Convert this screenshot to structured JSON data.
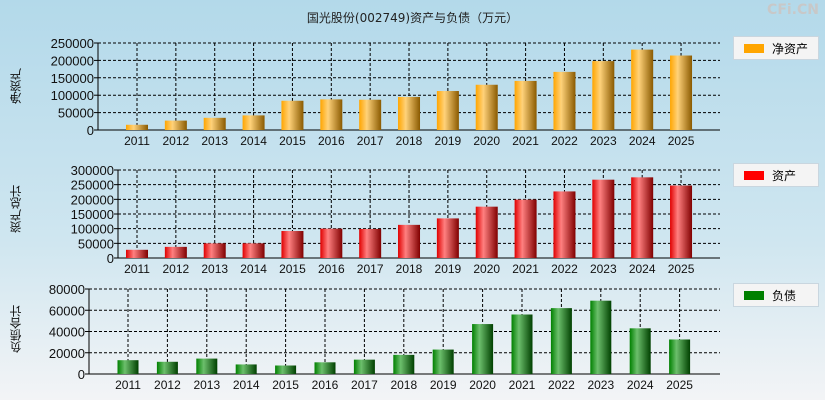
{
  "title": "国光股份(002749)资产与负债（万元）",
  "watermark": "CFi.CN",
  "chart_data": [
    {
      "type": "bar",
      "ylabel": "净资产",
      "legend": "净资产",
      "color": "#ffa500",
      "ylim": [
        0,
        250000
      ],
      "yticks": [
        0,
        50000,
        100000,
        150000,
        200000,
        250000
      ],
      "categories": [
        "2011",
        "2012",
        "2013",
        "2014",
        "2015",
        "2016",
        "2017",
        "2018",
        "2019",
        "2020",
        "2021",
        "2022",
        "2023",
        "2024",
        "2025"
      ],
      "values": [
        15000,
        27000,
        35000,
        42000,
        84000,
        88000,
        87000,
        95000,
        112000,
        130000,
        141000,
        167000,
        198000,
        231000,
        214000
      ],
      "grid": true,
      "legend_position": "right"
    },
    {
      "type": "bar",
      "ylabel": "资产总计",
      "legend": "资产",
      "color": "#ff0000",
      "ylim": [
        0,
        300000
      ],
      "yticks": [
        0,
        50000,
        100000,
        150000,
        200000,
        250000,
        300000
      ],
      "categories": [
        "2011",
        "2012",
        "2013",
        "2014",
        "2015",
        "2016",
        "2017",
        "2018",
        "2019",
        "2020",
        "2021",
        "2022",
        "2023",
        "2024",
        "2025"
      ],
      "values": [
        28000,
        38000,
        50000,
        50000,
        92000,
        100000,
        99000,
        113000,
        135000,
        175000,
        199000,
        227000,
        267000,
        275000,
        247000
      ],
      "grid": true,
      "legend_position": "right"
    },
    {
      "type": "bar",
      "ylabel": "负债合计",
      "legend": "负债",
      "color": "#008000",
      "ylim": [
        0,
        80000
      ],
      "yticks": [
        0,
        20000,
        40000,
        60000,
        80000
      ],
      "categories": [
        "2011",
        "2012",
        "2013",
        "2014",
        "2015",
        "2016",
        "2017",
        "2018",
        "2019",
        "2020",
        "2021",
        "2022",
        "2023",
        "2024",
        "2025"
      ],
      "values": [
        13000,
        11500,
        14500,
        9000,
        8000,
        11000,
        13500,
        18000,
        23000,
        47000,
        56000,
        62000,
        69000,
        43000,
        32500
      ],
      "grid": true,
      "legend_position": "right"
    }
  ]
}
